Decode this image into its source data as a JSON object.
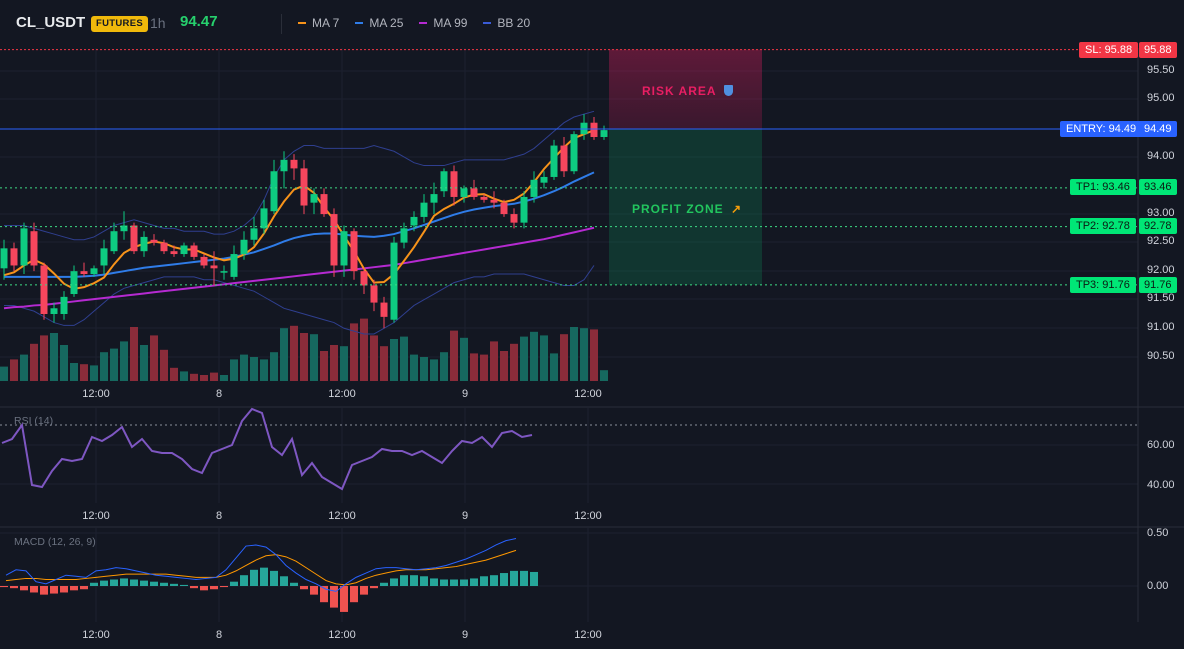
{
  "header": {
    "symbol": "CL_USDT",
    "badge": "FUTURES",
    "interval": "1h",
    "last_price": "94.47"
  },
  "legend": [
    {
      "label": "MA 7",
      "color": "#f7931a",
      "icon": "line-swatch"
    },
    {
      "label": "MA 25",
      "color": "#2f7ce8",
      "icon": "line-swatch"
    },
    {
      "label": "MA 99",
      "color": "#b52ad1",
      "icon": "line-swatch"
    },
    {
      "label": "BB 20",
      "color": "#3a5bd6",
      "icon": "line-swatch"
    }
  ],
  "colors": {
    "up": "#0ecb81",
    "down": "#f6465d",
    "vol_up": "#16685f",
    "vol_down": "#8a2c3a",
    "entry": "#2962ff",
    "sl": "#e91e63",
    "tp": "#00e676",
    "rsi": "#7e57c2",
    "macd_line": "#2962ff",
    "signal_line": "#ff9800"
  },
  "price_axis": {
    "ticks": [
      "95.50",
      "95.00",
      "94.00",
      "93.00",
      "92.50",
      "92.00",
      "91.50",
      "91.00",
      "90.50"
    ]
  },
  "time_axis": {
    "labels": [
      "12:00",
      "8",
      "12:00",
      "9",
      "12:00"
    ]
  },
  "levels": {
    "sl": {
      "tag": "SL: 95.88",
      "axis": "95.88",
      "price": 95.88
    },
    "entry": {
      "tag": "ENTRY: 94.49",
      "axis": "94.49",
      "price": 94.49
    },
    "tp1": {
      "tag": "TP1: 93.46",
      "axis": "93.46",
      "price": 93.46
    },
    "tp2": {
      "tag": "TP2: 92.78",
      "axis": "92.78",
      "price": 92.78
    },
    "tp3": {
      "tag": "TP3: 91.76",
      "axis": "91.76",
      "price": 91.76
    }
  },
  "zones": {
    "risk_label": "RISK AREA",
    "risk_icon": "shield-icon",
    "profit_label": "PROFIT ZONE",
    "profit_icon": "rocket-icon"
  },
  "rsi": {
    "title": "RSI (14)",
    "ticks": [
      "60.00",
      "40.00"
    ],
    "values": [
      61,
      63,
      70,
      40,
      39,
      47,
      53,
      52,
      53,
      64,
      62,
      65,
      69,
      59,
      63,
      57,
      56,
      56,
      53,
      48,
      46,
      56,
      58,
      60,
      72,
      78,
      76,
      59,
      55,
      63,
      45,
      51,
      44,
      41,
      38,
      50,
      52,
      54,
      58,
      57,
      57,
      55,
      57,
      54,
      51,
      57,
      62,
      61,
      64,
      59,
      66,
      67,
      64,
      65
    ]
  },
  "macd": {
    "title": "MACD (12, 26, 9)",
    "ticks": [
      "0.50",
      "0.00"
    ],
    "histogram": [
      -0.01,
      -0.02,
      -0.04,
      -0.06,
      -0.08,
      -0.07,
      -0.06,
      -0.04,
      -0.03,
      0.03,
      0.05,
      0.06,
      0.07,
      0.06,
      0.05,
      0.04,
      0.03,
      0.02,
      0.01,
      -0.02,
      -0.04,
      -0.03,
      -0.01,
      0.04,
      0.1,
      0.15,
      0.17,
      0.14,
      0.09,
      0.03,
      -0.03,
      -0.08,
      -0.15,
      -0.2,
      -0.24,
      -0.15,
      -0.08,
      -0.02,
      0.03,
      0.07,
      0.1,
      0.1,
      0.09,
      0.07,
      0.06,
      0.06,
      0.06,
      0.07,
      0.09,
      0.1,
      0.12,
      0.14,
      0.14,
      0.13
    ],
    "macd_line": [
      0.1,
      0.15,
      0.14,
      0.04,
      0.02,
      0.06,
      0.1,
      0.09,
      0.08,
      0.14,
      0.15,
      0.17,
      0.16,
      0.14,
      0.12,
      0.1,
      0.09,
      0.08,
      0.07,
      0.06,
      0.07,
      0.08,
      0.15,
      0.26,
      0.37,
      0.38,
      0.36,
      0.29,
      0.19,
      0.12,
      0.06,
      0.02,
      -0.03,
      -0.05,
      0.02,
      0.08,
      0.12,
      0.16,
      0.17,
      0.17,
      0.16,
      0.15,
      0.16,
      0.17,
      0.19,
      0.22,
      0.25,
      0.29,
      0.33,
      0.38,
      0.42,
      0.44
    ],
    "signal_line": [
      0.05,
      0.06,
      0.07,
      0.07,
      0.06,
      0.06,
      0.06,
      0.06,
      0.07,
      0.08,
      0.09,
      0.1,
      0.11,
      0.11,
      0.11,
      0.11,
      0.11,
      0.1,
      0.09,
      0.08,
      0.08,
      0.08,
      0.1,
      0.14,
      0.19,
      0.24,
      0.28,
      0.29,
      0.27,
      0.23,
      0.17,
      0.11,
      0.05,
      0.02,
      0.01,
      0.03,
      0.07,
      0.1,
      0.12,
      0.14,
      0.15,
      0.15,
      0.15,
      0.16,
      0.17,
      0.18,
      0.2,
      0.22,
      0.24,
      0.27,
      0.3,
      0.33
    ]
  },
  "candles": [
    {
      "o": 92.05,
      "h": 92.55,
      "l": 91.85,
      "c": 92.4
    },
    {
      "o": 92.4,
      "h": 92.5,
      "l": 92.0,
      "c": 92.1
    },
    {
      "o": 92.1,
      "h": 92.85,
      "l": 91.95,
      "c": 92.75
    },
    {
      "o": 92.7,
      "h": 92.85,
      "l": 92.0,
      "c": 92.1
    },
    {
      "o": 92.1,
      "h": 92.15,
      "l": 91.15,
      "c": 91.25
    },
    {
      "o": 91.25,
      "h": 91.45,
      "l": 91.1,
      "c": 91.35
    },
    {
      "o": 91.25,
      "h": 91.65,
      "l": 91.15,
      "c": 91.55
    },
    {
      "o": 91.6,
      "h": 92.1,
      "l": 91.55,
      "c": 92.0
    },
    {
      "o": 92.0,
      "h": 92.15,
      "l": 91.9,
      "c": 91.95
    },
    {
      "o": 91.95,
      "h": 92.1,
      "l": 91.9,
      "c": 92.05
    },
    {
      "o": 92.1,
      "h": 92.55,
      "l": 91.95,
      "c": 92.4
    },
    {
      "o": 92.35,
      "h": 92.85,
      "l": 92.3,
      "c": 92.7
    },
    {
      "o": 92.7,
      "h": 93.05,
      "l": 92.55,
      "c": 92.8
    },
    {
      "o": 92.8,
      "h": 92.85,
      "l": 92.3,
      "c": 92.35
    },
    {
      "o": 92.35,
      "h": 92.7,
      "l": 92.25,
      "c": 92.6
    },
    {
      "o": 92.55,
      "h": 92.65,
      "l": 92.45,
      "c": 92.5
    },
    {
      "o": 92.5,
      "h": 92.55,
      "l": 92.3,
      "c": 92.35
    },
    {
      "o": 92.35,
      "h": 92.45,
      "l": 92.25,
      "c": 92.3
    },
    {
      "o": 92.3,
      "h": 92.5,
      "l": 92.25,
      "c": 92.45
    },
    {
      "o": 92.45,
      "h": 92.5,
      "l": 92.2,
      "c": 92.25
    },
    {
      "o": 92.25,
      "h": 92.3,
      "l": 92.05,
      "c": 92.1
    },
    {
      "o": 92.1,
      "h": 92.35,
      "l": 91.75,
      "c": 92.05
    },
    {
      "o": 92.0,
      "h": 92.1,
      "l": 91.85,
      "c": 92.0
    },
    {
      "o": 91.9,
      "h": 92.45,
      "l": 91.85,
      "c": 92.3
    },
    {
      "o": 92.3,
      "h": 92.7,
      "l": 92.2,
      "c": 92.55
    },
    {
      "o": 92.55,
      "h": 92.95,
      "l": 92.45,
      "c": 92.75
    },
    {
      "o": 92.75,
      "h": 93.25,
      "l": 92.65,
      "c": 93.1
    },
    {
      "o": 93.05,
      "h": 93.95,
      "l": 93.0,
      "c": 93.75
    },
    {
      "o": 93.75,
      "h": 94.1,
      "l": 93.45,
      "c": 93.95
    },
    {
      "o": 93.95,
      "h": 94.05,
      "l": 93.6,
      "c": 93.8
    },
    {
      "o": 93.8,
      "h": 93.95,
      "l": 93.0,
      "c": 93.15
    },
    {
      "o": 93.2,
      "h": 93.45,
      "l": 93.0,
      "c": 93.35
    },
    {
      "o": 93.35,
      "h": 93.45,
      "l": 92.95,
      "c": 93.0
    },
    {
      "o": 93.0,
      "h": 93.1,
      "l": 91.9,
      "c": 92.1
    },
    {
      "o": 92.1,
      "h": 92.8,
      "l": 91.9,
      "c": 92.7
    },
    {
      "o": 92.7,
      "h": 92.75,
      "l": 91.85,
      "c": 92.0
    },
    {
      "o": 92.0,
      "h": 92.05,
      "l": 91.6,
      "c": 91.75
    },
    {
      "o": 91.75,
      "h": 91.85,
      "l": 91.3,
      "c": 91.45
    },
    {
      "o": 91.45,
      "h": 91.55,
      "l": 91.0,
      "c": 91.2
    },
    {
      "o": 91.15,
      "h": 92.6,
      "l": 91.1,
      "c": 92.5
    },
    {
      "o": 92.5,
      "h": 92.85,
      "l": 92.4,
      "c": 92.75
    },
    {
      "o": 92.8,
      "h": 93.05,
      "l": 92.7,
      "c": 92.95
    },
    {
      "o": 92.95,
      "h": 93.35,
      "l": 92.85,
      "c": 93.2
    },
    {
      "o": 93.2,
      "h": 93.55,
      "l": 93.0,
      "c": 93.35
    },
    {
      "o": 93.4,
      "h": 93.8,
      "l": 93.3,
      "c": 93.75
    },
    {
      "o": 93.75,
      "h": 93.85,
      "l": 93.15,
      "c": 93.3
    },
    {
      "o": 93.3,
      "h": 93.5,
      "l": 93.2,
      "c": 93.45
    },
    {
      "o": 93.45,
      "h": 93.6,
      "l": 93.25,
      "c": 93.3
    },
    {
      "o": 93.3,
      "h": 93.35,
      "l": 93.2,
      "c": 93.25
    },
    {
      "o": 93.25,
      "h": 93.4,
      "l": 93.1,
      "c": 93.2
    },
    {
      "o": 93.2,
      "h": 93.25,
      "l": 92.95,
      "c": 93.0
    },
    {
      "o": 93.0,
      "h": 93.1,
      "l": 92.75,
      "c": 92.85
    },
    {
      "o": 92.85,
      "h": 93.4,
      "l": 92.75,
      "c": 93.3
    },
    {
      "o": 93.3,
      "h": 93.75,
      "l": 93.2,
      "c": 93.6
    },
    {
      "o": 93.55,
      "h": 93.75,
      "l": 93.45,
      "c": 93.65
    },
    {
      "o": 93.65,
      "h": 94.3,
      "l": 93.6,
      "c": 94.2
    },
    {
      "o": 94.2,
      "h": 94.35,
      "l": 93.65,
      "c": 93.75
    },
    {
      "o": 93.75,
      "h": 94.45,
      "l": 93.7,
      "c": 94.4
    },
    {
      "o": 94.4,
      "h": 94.75,
      "l": 94.3,
      "c": 94.6
    },
    {
      "o": 94.6,
      "h": 94.7,
      "l": 94.3,
      "c": 94.35
    },
    {
      "o": 94.35,
      "h": 94.55,
      "l": 94.3,
      "c": 94.47
    }
  ],
  "volumes": [
    12,
    18,
    22,
    31,
    38,
    40,
    30,
    15,
    14,
    13,
    24,
    27,
    33,
    45,
    30,
    38,
    26,
    11,
    8,
    6,
    5,
    7,
    5,
    18,
    22,
    20,
    18,
    24,
    44,
    46,
    40,
    39,
    25,
    30,
    29,
    48,
    52,
    38,
    29,
    35,
    37,
    22,
    20,
    18,
    24,
    42,
    36,
    23,
    22,
    33,
    25,
    31,
    37,
    41,
    38,
    23,
    39,
    45,
    44,
    43,
    9
  ],
  "ma7": [
    91.93,
    91.98,
    92.1,
    92.2,
    92.12,
    91.96,
    91.78,
    91.69,
    91.72,
    91.79,
    91.89,
    92.12,
    92.32,
    92.42,
    92.48,
    92.52,
    92.49,
    92.42,
    92.38,
    92.38,
    92.31,
    92.24,
    92.19,
    92.22,
    92.29,
    92.42,
    92.66,
    92.96,
    93.22,
    93.43,
    93.5,
    93.37,
    93.12,
    92.9,
    92.62,
    92.35,
    92.04,
    91.8,
    91.81,
    91.95,
    92.18,
    92.42,
    92.69,
    92.97,
    93.09,
    93.18,
    93.29,
    93.34,
    93.35,
    93.27,
    93.21,
    93.25,
    93.36,
    93.56,
    93.79,
    93.98,
    94.17,
    94.33,
    94.4,
    94.47
  ],
  "ma25": [
    91.9,
    91.9,
    91.9,
    91.9,
    91.9,
    91.9,
    91.9,
    91.9,
    91.91,
    91.92,
    91.94,
    91.97,
    92.0,
    92.03,
    92.06,
    92.08,
    92.1,
    92.12,
    92.14,
    92.16,
    92.18,
    92.2,
    92.22,
    92.25,
    92.29,
    92.33,
    92.39,
    92.45,
    92.52,
    92.58,
    92.62,
    92.65,
    92.66,
    92.66,
    92.64,
    92.62,
    92.61,
    92.6,
    92.62,
    92.65,
    92.7,
    92.75,
    92.81,
    92.87,
    92.93,
    92.99,
    93.04,
    93.08,
    93.11,
    93.14,
    93.16,
    93.18,
    93.22,
    93.27,
    93.33,
    93.4,
    93.48,
    93.57,
    93.65,
    93.73
  ],
  "ma99": [
    91.35,
    91.37,
    91.38,
    91.4,
    91.41,
    91.43,
    91.45,
    91.47,
    91.49,
    91.51,
    91.53,
    91.55,
    91.57,
    91.59,
    91.61,
    91.63,
    91.65,
    91.67,
    91.69,
    91.71,
    91.73,
    91.75,
    91.77,
    91.79,
    91.81,
    91.83,
    91.85,
    91.87,
    91.89,
    91.91,
    91.93,
    91.95,
    91.97,
    91.99,
    92.01,
    92.03,
    92.05,
    92.07,
    92.09,
    92.11,
    92.14,
    92.17,
    92.2,
    92.23,
    92.26,
    92.29,
    92.32,
    92.35,
    92.38,
    92.41,
    92.44,
    92.47,
    92.5,
    92.53,
    92.56,
    92.6,
    92.64,
    92.68,
    92.72,
    92.76
  ],
  "bb_upper": [
    92.8,
    92.8,
    92.8,
    92.75,
    92.7,
    92.65,
    92.6,
    92.55,
    92.55,
    92.6,
    92.7,
    92.8,
    92.85,
    92.9,
    92.85,
    92.8,
    92.75,
    92.75,
    92.7,
    92.7,
    92.7,
    92.65,
    92.65,
    92.7,
    92.8,
    92.95,
    93.25,
    93.65,
    93.95,
    94.1,
    94.2,
    94.2,
    94.15,
    94.15,
    94.15,
    94.15,
    94.15,
    94.2,
    94.15,
    94.1,
    94.0,
    93.9,
    93.85,
    93.85,
    93.85,
    93.9,
    93.95,
    93.95,
    93.95,
    93.95,
    93.95,
    94.0,
    94.05,
    94.15,
    94.3,
    94.45,
    94.6,
    94.7,
    94.75,
    94.8
  ],
  "bb_lower": [
    91.4,
    91.4,
    91.35,
    91.3,
    91.2,
    91.1,
    91.05,
    91.05,
    91.15,
    91.3,
    91.45,
    91.6,
    91.7,
    91.75,
    91.8,
    91.85,
    91.9,
    91.9,
    91.9,
    91.9,
    91.85,
    91.85,
    91.8,
    91.75,
    91.7,
    91.65,
    91.55,
    91.45,
    91.35,
    91.3,
    91.25,
    91.2,
    91.15,
    91.1,
    91.0,
    90.95,
    90.9,
    90.9,
    91.0,
    91.1,
    91.25,
    91.4,
    91.5,
    91.6,
    91.7,
    91.8,
    91.85,
    91.9,
    91.9,
    91.95,
    91.95,
    91.95,
    91.95,
    91.9,
    91.85,
    91.8,
    91.75,
    91.75,
    91.85,
    92.1
  ]
}
